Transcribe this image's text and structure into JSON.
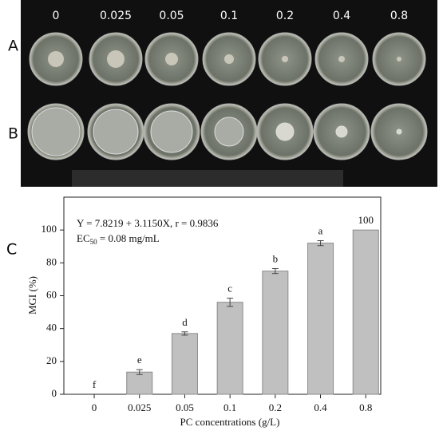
{
  "photo": {
    "row_labels": [
      "A",
      "B"
    ],
    "column_labels": [
      "0",
      "0.025",
      "0.05",
      "0.1",
      "0.2",
      "0.4",
      "0.8"
    ]
  },
  "panel_label": "C",
  "chart_data": {
    "type": "bar",
    "equation": "Y = 7.8219 + 3.1150X, r = 0.9836",
    "ec50": {
      "base": "EC",
      "sub": "50",
      "rest": " = 0.08 mg/mL"
    },
    "x_label": "PC concentrations (g/L)",
    "y_label": "MGI (%)",
    "categories": [
      "0",
      "0.025",
      "0.05",
      "0.1",
      "0.2",
      "0.4",
      "0.8"
    ],
    "values": [
      0,
      13.5,
      37,
      56,
      75,
      92,
      100
    ],
    "errors": [
      0,
      1.5,
      1,
      2.5,
      1.5,
      1.5,
      0
    ],
    "letters": [
      "f",
      "e",
      "d",
      "c",
      "b",
      "a",
      null
    ],
    "value_labels": [
      null,
      null,
      null,
      null,
      null,
      null,
      "100"
    ],
    "color": "#c0c0c0",
    "ylim": [
      0,
      120
    ],
    "yticks": [
      0,
      20,
      40,
      60,
      80,
      100
    ]
  }
}
